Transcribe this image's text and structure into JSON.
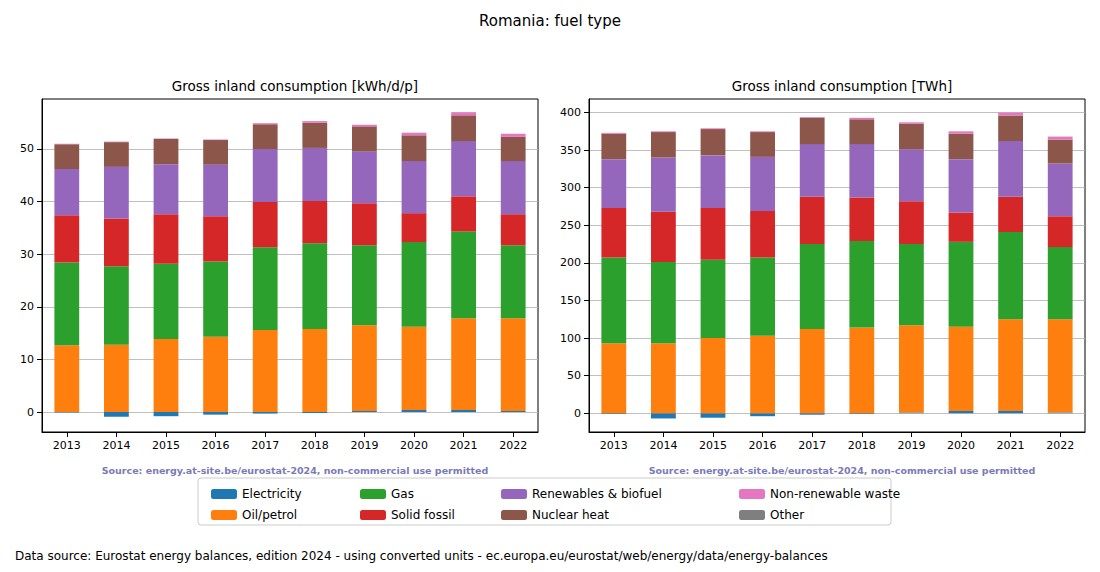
{
  "title": "Romania: fuel type",
  "footer": "Data source: Eurostat energy balances, edition 2024 - using converted units - ec.europa.eu/eurostat/web/energy/data/energy-balances",
  "chart_data": [
    {
      "type": "bar",
      "stacked": true,
      "grid": true,
      "legend": "bottom",
      "title": "Gross inland consumption [kWh/d/p]",
      "source": "Source: energy.at-site.be/eurostat-2024, non-commercial use permitted",
      "categories": [
        "2013",
        "2014",
        "2015",
        "2016",
        "2017",
        "2018",
        "2019",
        "2020",
        "2021",
        "2022"
      ],
      "ylim": [
        -3.8,
        59.5
      ],
      "yticks": [
        0,
        10,
        20,
        30,
        40,
        50
      ],
      "series": [
        {
          "name": "Electricity",
          "color": "#1f77b4",
          "values": [
            -0.1,
            -0.9,
            -0.8,
            -0.5,
            -0.3,
            -0.2,
            0.2,
            0.4,
            0.4,
            0.2
          ]
        },
        {
          "name": "Oil/petrol",
          "color": "#ff7f0e",
          "values": [
            12.7,
            12.8,
            13.9,
            14.3,
            15.6,
            15.8,
            16.3,
            15.8,
            17.4,
            17.6
          ]
        },
        {
          "name": "Gas",
          "color": "#2ca02c",
          "values": [
            15.7,
            14.9,
            14.3,
            14.3,
            15.7,
            16.3,
            15.2,
            16.1,
            16.5,
            13.9
          ]
        },
        {
          "name": "Solid fossil",
          "color": "#d62728",
          "values": [
            9.0,
            9.1,
            9.4,
            8.6,
            8.6,
            8.0,
            8.0,
            5.5,
            6.7,
            5.9
          ]
        },
        {
          "name": "Renewables & biofuel",
          "color": "#9467bd",
          "values": [
            8.8,
            9.8,
            9.5,
            9.8,
            10.1,
            10.1,
            9.8,
            9.9,
            10.5,
            10.1
          ]
        },
        {
          "name": "Nuclear heat",
          "color": "#8c564b",
          "values": [
            4.7,
            4.7,
            4.8,
            4.7,
            4.7,
            4.8,
            4.8,
            4.9,
            4.9,
            4.6
          ]
        },
        {
          "name": "Non-renewable waste",
          "color": "#e377c2",
          "values": [
            0.1,
            0.1,
            0.1,
            0.1,
            0.2,
            0.3,
            0.3,
            0.5,
            0.6,
            0.6
          ]
        },
        {
          "name": "Other",
          "color": "#7f7f7f",
          "values": [
            0,
            0,
            0,
            0,
            0,
            0,
            0,
            0,
            0,
            0
          ]
        }
      ]
    },
    {
      "type": "bar",
      "stacked": true,
      "grid": true,
      "legend": "bottom",
      "title": "Gross inland consumption [TWh]",
      "source": "Source: energy.at-site.be/eurostat-2024, non-commercial use permitted",
      "categories": [
        "2013",
        "2014",
        "2015",
        "2016",
        "2017",
        "2018",
        "2019",
        "2020",
        "2021",
        "2022"
      ],
      "ylim": [
        -25,
        418
      ],
      "yticks": [
        0,
        50,
        100,
        150,
        200,
        250,
        300,
        350,
        400
      ],
      "series": [
        {
          "name": "Electricity",
          "color": "#1f77b4",
          "values": [
            -1,
            -7,
            -6,
            -4,
            -2,
            -1,
            1,
            3,
            3,
            1
          ]
        },
        {
          "name": "Oil/petrol",
          "color": "#ff7f0e",
          "values": [
            93,
            93,
            100,
            103,
            112,
            114,
            116,
            112,
            122,
            124
          ]
        },
        {
          "name": "Gas",
          "color": "#2ca02c",
          "values": [
            114,
            108,
            104,
            104,
            113,
            115,
            108,
            113,
            116,
            96
          ]
        },
        {
          "name": "Solid fossil",
          "color": "#d62728",
          "values": [
            66,
            67,
            69,
            62,
            63,
            58,
            57,
            39,
            47,
            41
          ]
        },
        {
          "name": "Renewables & biofuel",
          "color": "#9467bd",
          "values": [
            65,
            72,
            70,
            72,
            70,
            71,
            69,
            71,
            74,
            70
          ]
        },
        {
          "name": "Nuclear heat",
          "color": "#8c564b",
          "values": [
            34,
            34,
            35,
            33,
            35,
            33,
            34,
            34,
            34,
            32
          ]
        },
        {
          "name": "Non-renewable waste",
          "color": "#e377c2",
          "values": [
            1,
            1,
            1,
            1,
            1,
            2,
            2,
            3,
            4,
            4
          ]
        },
        {
          "name": "Other",
          "color": "#7f7f7f",
          "values": [
            0,
            0,
            0,
            0,
            0,
            0,
            0,
            0,
            0,
            0
          ]
        }
      ]
    }
  ]
}
